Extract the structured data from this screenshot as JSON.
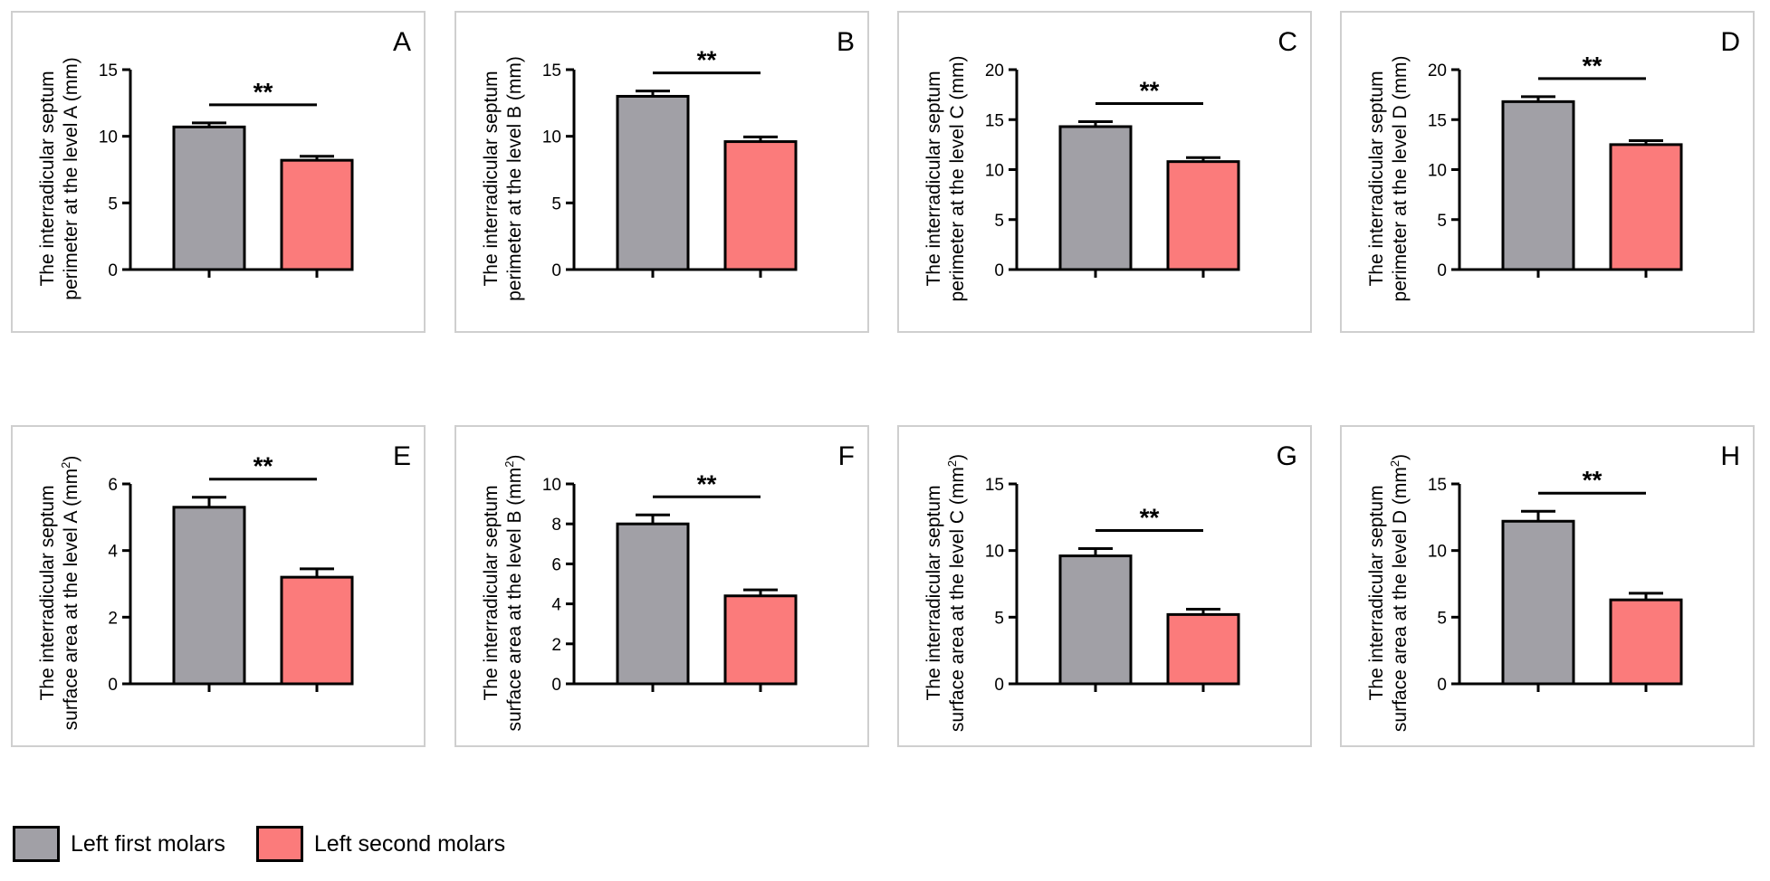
{
  "colors": {
    "first": "#a1a0a6",
    "second": "#fb7b7b",
    "axis": "#000000"
  },
  "legend": [
    {
      "label": "Left first molars",
      "color": "#a1a0a6"
    },
    {
      "label": "Left second molars",
      "color": "#fb7b7b"
    }
  ],
  "chart_data": [
    {
      "type": "bar",
      "panel": "A",
      "categories": [
        "Left first molars",
        "Left second molars"
      ],
      "values": [
        10.7,
        8.2
      ],
      "errors": [
        0.3,
        0.3
      ],
      "ylim": [
        0,
        15
      ],
      "yticks": [
        0,
        5,
        10,
        15
      ],
      "ylabel_line1": "The interradicular septum",
      "ylabel_line2": "perimeter at the level A (mm)",
      "significance": "**"
    },
    {
      "type": "bar",
      "panel": "B",
      "categories": [
        "Left first molars",
        "Left second molars"
      ],
      "values": [
        13.0,
        9.6
      ],
      "errors": [
        0.4,
        0.35
      ],
      "ylim": [
        0,
        15
      ],
      "yticks": [
        0,
        5,
        10,
        15
      ],
      "ylabel_line1": "The interradicular septum",
      "ylabel_line2": "perimeter at the level B (mm)",
      "significance": "**"
    },
    {
      "type": "bar",
      "panel": "C",
      "categories": [
        "Left first molars",
        "Left second molars"
      ],
      "values": [
        14.3,
        10.8
      ],
      "errors": [
        0.5,
        0.4
      ],
      "ylim": [
        0,
        20
      ],
      "yticks": [
        0,
        5,
        10,
        15,
        20
      ],
      "ylabel_line1": "The interradicular septum",
      "ylabel_line2": "perimeter at the level C (mm)",
      "significance": "**"
    },
    {
      "type": "bar",
      "panel": "D",
      "categories": [
        "Left first molars",
        "Left second molars"
      ],
      "values": [
        16.8,
        12.5
      ],
      "errors": [
        0.5,
        0.4
      ],
      "ylim": [
        0,
        20
      ],
      "yticks": [
        0,
        5,
        10,
        15,
        20
      ],
      "ylabel_line1": "The interradicular septum",
      "ylabel_line2": "perimeter at the level D (mm)",
      "significance": "**"
    },
    {
      "type": "bar",
      "panel": "E",
      "categories": [
        "Left first molars",
        "Left second molars"
      ],
      "values": [
        5.3,
        3.2
      ],
      "errors": [
        0.3,
        0.25
      ],
      "ylim": [
        0,
        6
      ],
      "yticks": [
        0,
        2,
        4,
        6
      ],
      "ylabel_line1": "The interradicular septum",
      "ylabel_line2": "surface area at the level A (mm",
      "ylabel_sup": "2",
      "ylabel_end": ")",
      "significance": "**"
    },
    {
      "type": "bar",
      "panel": "F",
      "categories": [
        "Left first molars",
        "Left second molars"
      ],
      "values": [
        8.0,
        4.4
      ],
      "errors": [
        0.45,
        0.3
      ],
      "ylim": [
        0,
        10
      ],
      "yticks": [
        0,
        2,
        4,
        6,
        8,
        10
      ],
      "ylabel_line1": "The interradicular septum",
      "ylabel_line2": "surface area at the level B (mm",
      "ylabel_sup": "2",
      "ylabel_end": ")",
      "significance": "**"
    },
    {
      "type": "bar",
      "panel": "G",
      "categories": [
        "Left first molars",
        "Left second molars"
      ],
      "values": [
        9.6,
        5.2
      ],
      "errors": [
        0.55,
        0.4
      ],
      "ylim": [
        0,
        15
      ],
      "yticks": [
        0,
        5,
        10,
        15
      ],
      "ylabel_line1": "The interradicular septum",
      "ylabel_line2": "surface area at the level C (mm",
      "ylabel_sup": "2",
      "ylabel_end": ")",
      "significance": "**"
    },
    {
      "type": "bar",
      "panel": "H",
      "categories": [
        "Left first molars",
        "Left second molars"
      ],
      "values": [
        12.2,
        6.3
      ],
      "errors": [
        0.75,
        0.5
      ],
      "ylim": [
        0,
        15
      ],
      "yticks": [
        0,
        5,
        10,
        15
      ],
      "ylabel_line1": "The interradicular septum",
      "ylabel_line2": "surface area at the level D (mm",
      "ylabel_sup": "2",
      "ylabel_end": ")",
      "significance": "**"
    }
  ]
}
